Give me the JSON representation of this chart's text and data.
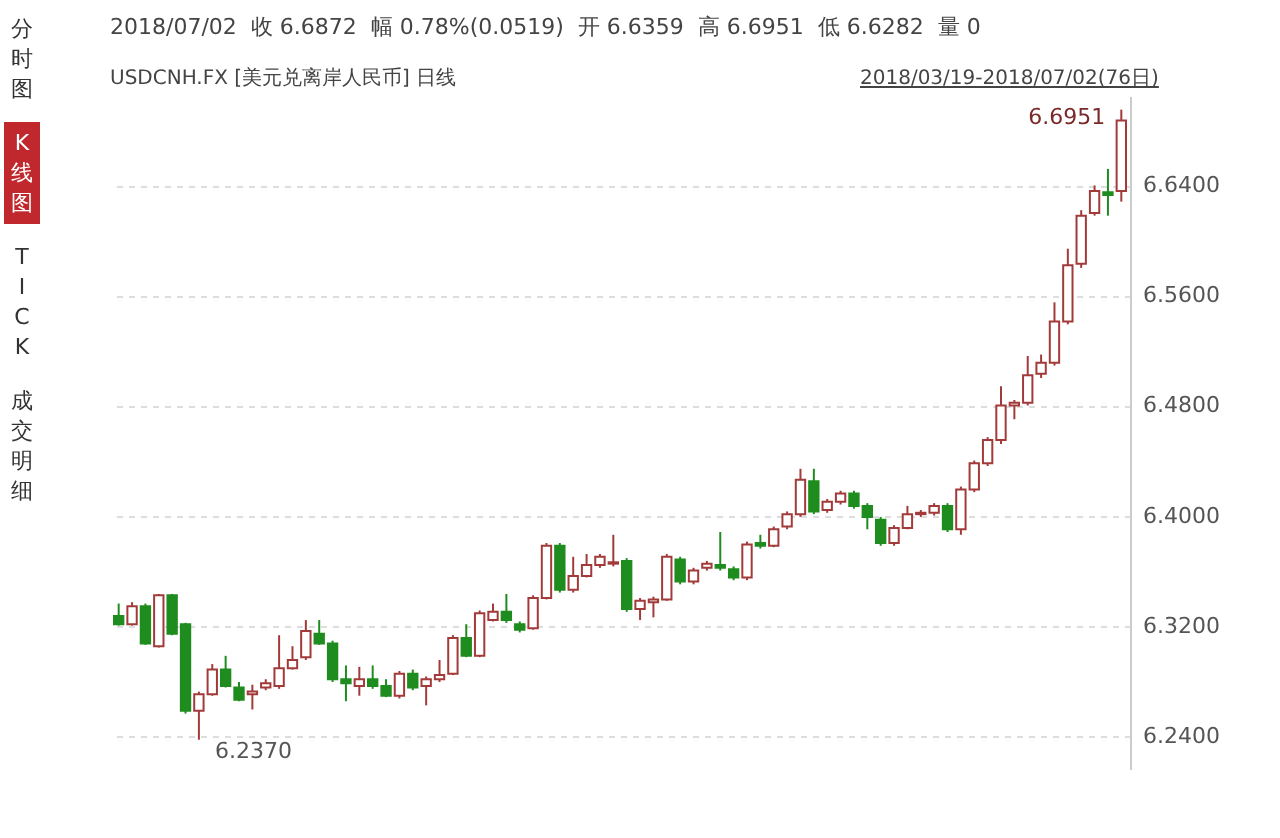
{
  "chart_data": {
    "type": "candlestick",
    "title": "USDCNH.FX [美元兑离岸人民币] 日线",
    "subtitle": "2018/07/02  收 6.6872  幅 0.78%(0.0519)  开 6.6359  高 6.6951  低 6.6282  量 0",
    "annotations": [
      "2018/03/19-2018/07/02(76日)",
      "分时图",
      "K线图",
      "TICK",
      "成交明细",
      "6.6951",
      "6.2370"
    ],
    "categories": [
      null,
      null,
      null,
      null,
      null,
      null,
      null,
      null,
      null,
      null,
      null,
      null,
      null,
      null,
      null,
      null,
      null,
      null,
      null,
      null,
      null,
      null,
      null,
      null,
      null,
      null,
      null,
      null,
      null,
      null,
      null,
      null,
      null,
      null,
      null,
      null,
      null,
      null,
      null,
      null,
      null,
      null,
      null,
      null,
      null,
      null,
      null,
      null,
      null,
      null,
      null,
      null,
      null,
      null,
      null,
      null,
      null,
      null,
      null,
      null,
      null,
      null,
      null,
      null,
      null,
      null,
      null,
      null,
      null,
      null,
      null,
      null,
      null,
      null,
      null,
      null
    ],
    "ohlc": [
      [
        6.327,
        6.336,
        6.32,
        6.321
      ],
      [
        6.321,
        6.337,
        6.32,
        6.334
      ],
      [
        6.334,
        6.336,
        6.306,
        6.307
      ],
      [
        6.305,
        6.343,
        6.304,
        6.342
      ],
      [
        6.342,
        6.343,
        6.313,
        6.314
      ],
      [
        6.321,
        6.322,
        6.256,
        6.258
      ],
      [
        6.258,
        6.272,
        6.237,
        6.27
      ],
      [
        6.27,
        6.292,
        6.269,
        6.288
      ],
      [
        6.288,
        6.298,
        6.275,
        6.276
      ],
      [
        6.275,
        6.279,
        6.265,
        6.266
      ],
      [
        6.27,
        6.277,
        6.259,
        6.272
      ],
      [
        6.275,
        6.281,
        6.273,
        6.278
      ],
      [
        6.276,
        6.313,
        6.274,
        6.289
      ],
      [
        6.289,
        6.305,
        6.288,
        6.295
      ],
      [
        6.297,
        6.324,
        6.295,
        6.316
      ],
      [
        6.314,
        6.324,
        6.306,
        6.307
      ],
      [
        6.307,
        6.309,
        6.279,
        6.281
      ],
      [
        6.281,
        6.291,
        6.265,
        6.278
      ],
      [
        6.276,
        6.29,
        6.269,
        6.281
      ],
      [
        6.281,
        6.291,
        6.274,
        6.276
      ],
      [
        6.276,
        6.281,
        6.268,
        6.269
      ],
      [
        6.269,
        6.287,
        6.267,
        6.285
      ],
      [
        6.285,
        6.288,
        6.273,
        6.275
      ],
      [
        6.276,
        6.283,
        6.262,
        6.281
      ],
      [
        6.281,
        6.295,
        6.279,
        6.284
      ],
      [
        6.285,
        6.313,
        6.284,
        6.311
      ],
      [
        6.311,
        6.321,
        6.297,
        6.298
      ],
      [
        6.298,
        6.331,
        6.297,
        6.329
      ],
      [
        6.324,
        6.336,
        6.323,
        6.33
      ],
      [
        6.33,
        6.343,
        6.322,
        6.324
      ],
      [
        6.321,
        6.323,
        6.315,
        6.317
      ],
      [
        6.318,
        6.342,
        6.317,
        6.34
      ],
      [
        6.34,
        6.38,
        6.339,
        6.378
      ],
      [
        6.378,
        6.38,
        6.344,
        6.346
      ],
      [
        6.346,
        6.37,
        6.344,
        6.356
      ],
      [
        6.356,
        6.372,
        6.355,
        6.364
      ],
      [
        6.364,
        6.372,
        6.362,
        6.37
      ],
      [
        6.365,
        6.386,
        6.363,
        6.366
      ],
      [
        6.367,
        6.369,
        6.33,
        6.332
      ],
      [
        6.332,
        6.34,
        6.324,
        6.338
      ],
      [
        6.337,
        6.341,
        6.326,
        6.339
      ],
      [
        6.339,
        6.372,
        6.338,
        6.37
      ],
      [
        6.368,
        6.37,
        6.35,
        6.352
      ],
      [
        6.352,
        6.362,
        6.35,
        6.36
      ],
      [
        6.362,
        6.367,
        6.36,
        6.365
      ],
      [
        6.364,
        6.388,
        6.36,
        6.362
      ],
      [
        6.361,
        6.363,
        6.353,
        6.355
      ],
      [
        6.355,
        6.381,
        6.353,
        6.379
      ],
      [
        6.38,
        6.386,
        6.376,
        6.378
      ],
      [
        6.378,
        6.392,
        6.377,
        6.39
      ],
      [
        6.392,
        6.403,
        6.39,
        6.401
      ],
      [
        6.401,
        6.434,
        6.399,
        6.426
      ],
      [
        6.425,
        6.434,
        6.401,
        6.403
      ],
      [
        6.404,
        6.412,
        6.402,
        6.41
      ],
      [
        6.41,
        6.418,
        6.408,
        6.416
      ],
      [
        6.416,
        6.418,
        6.405,
        6.407
      ],
      [
        6.407,
        6.409,
        6.39,
        6.399
      ],
      [
        6.397,
        6.399,
        6.378,
        6.38
      ],
      [
        6.38,
        6.393,
        6.378,
        6.391
      ],
      [
        6.391,
        6.407,
        6.39,
        6.401
      ],
      [
        6.401,
        6.404,
        6.399,
        6.402
      ],
      [
        6.402,
        6.409,
        6.4,
        6.407
      ],
      [
        6.407,
        6.409,
        6.388,
        6.39
      ],
      [
        6.39,
        6.421,
        6.386,
        6.419
      ],
      [
        6.419,
        6.44,
        6.417,
        6.438
      ],
      [
        6.438,
        6.457,
        6.436,
        6.455
      ],
      [
        6.455,
        6.494,
        6.452,
        6.48
      ],
      [
        6.48,
        6.484,
        6.47,
        6.482
      ],
      [
        6.482,
        6.516,
        6.48,
        6.502
      ],
      [
        6.503,
        6.517,
        6.5,
        6.511
      ],
      [
        6.511,
        6.555,
        6.509,
        6.541
      ],
      [
        6.541,
        6.594,
        6.539,
        6.582
      ],
      [
        6.583,
        6.622,
        6.58,
        6.618
      ],
      [
        6.62,
        6.64,
        6.618,
        6.636
      ],
      [
        6.635,
        6.652,
        6.618,
        6.633
      ],
      [
        6.6359,
        6.6951,
        6.6282,
        6.6872
      ]
    ],
    "ylim": [
      6.215,
      6.705
    ],
    "yticks": [
      {
        "value": 6.24,
        "label": "6.2400"
      },
      {
        "value": 6.32,
        "label": "6.3200"
      },
      {
        "value": 6.4,
        "label": "6.4000"
      },
      {
        "value": 6.48,
        "label": "6.4800"
      },
      {
        "value": 6.56,
        "label": "6.5600"
      },
      {
        "value": 6.64,
        "label": "6.6400"
      }
    ],
    "grid": "y",
    "tick_labels": "y"
  }
}
